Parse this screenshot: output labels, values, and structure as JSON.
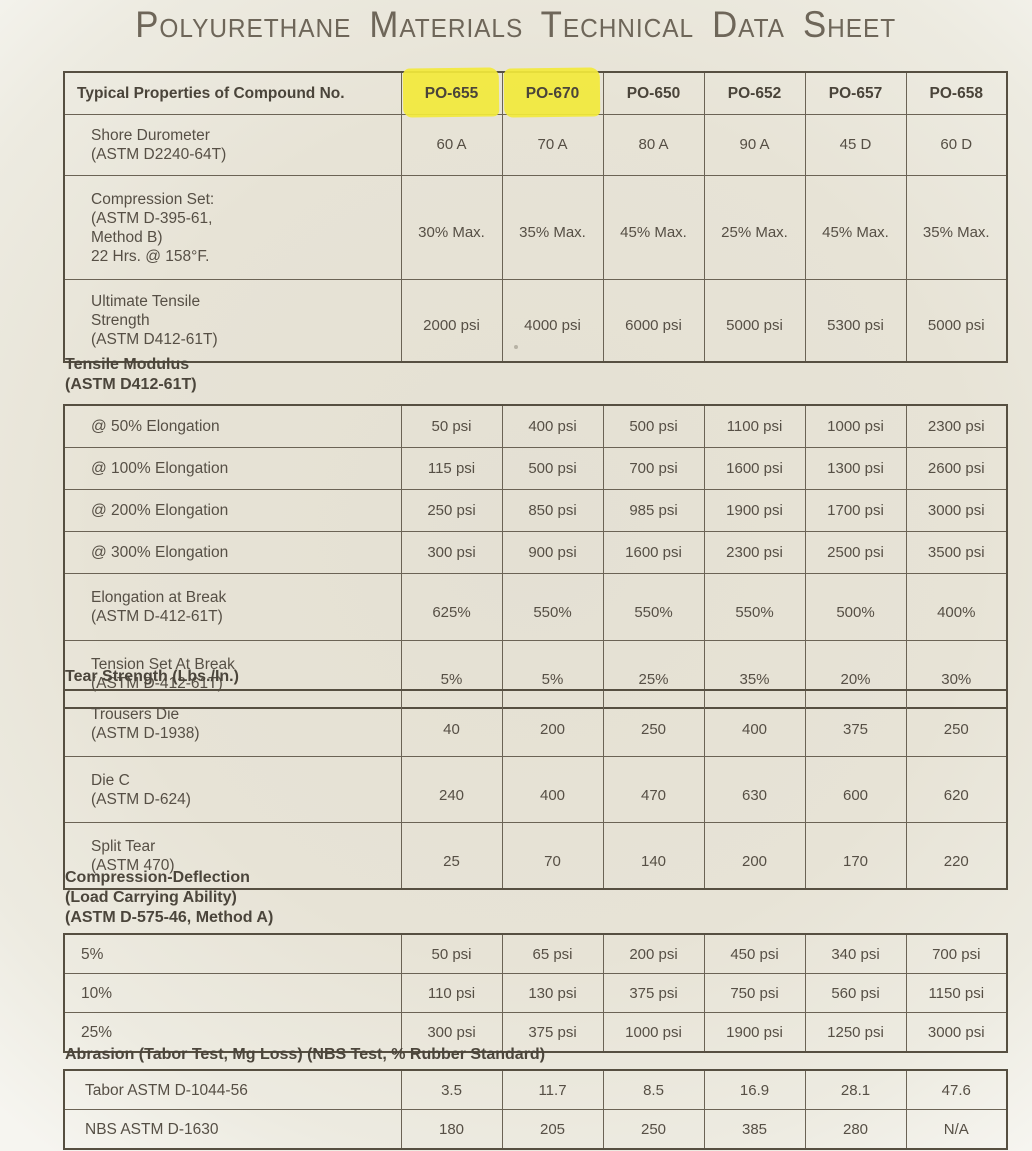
{
  "page_title": "Polyurethane Materials Technical Data Sheet",
  "colors": {
    "paper": "#e7e3d6",
    "ink": "#564f45",
    "table_border": "#6b6355",
    "highlight": "#f2e93b"
  },
  "columns": [
    "PO-655",
    "PO-670",
    "PO-650",
    "PO-652",
    "PO-657",
    "PO-658"
  ],
  "highlighted_columns": [
    0,
    1
  ],
  "main_table": {
    "header_label": "Typical Properties of Compound No.",
    "rows": [
      {
        "label_lines": [
          "Shore Durometer",
          "(ASTM D2240-64T)"
        ],
        "values": [
          "60 A",
          "70 A",
          "80 A",
          "90 A",
          "45 D",
          "60 D"
        ]
      },
      {
        "label_lines": [
          "Compression Set:",
          "(ASTM D-395-61,",
          "Method B)",
          "22 Hrs. @ 158°F."
        ],
        "values": [
          "30% Max.",
          "35% Max.",
          "45% Max.",
          "25% Max.",
          "45% Max.",
          "35% Max."
        ]
      },
      {
        "label_lines": [
          "Ultimate Tensile",
          "Strength",
          "(ASTM D412-61T)"
        ],
        "values": [
          "2000 psi",
          "4000 psi",
          "6000 psi",
          "5000 psi",
          "5300 psi",
          "5000 psi"
        ]
      }
    ]
  },
  "sections": [
    {
      "id": "tensile",
      "heading_lines": [
        "Tensile Modulus",
        "(ASTM D412-61T)"
      ],
      "rows": [
        {
          "label_lines": [
            "@ 50% Elongation"
          ],
          "values": [
            "50 psi",
            "400 psi",
            "500 psi",
            "1100 psi",
            "1000 psi",
            "2300 psi"
          ]
        },
        {
          "label_lines": [
            "@ 100% Elongation"
          ],
          "values": [
            "115 psi",
            "500 psi",
            "700 psi",
            "1600 psi",
            "1300 psi",
            "2600 psi"
          ]
        },
        {
          "label_lines": [
            "@ 200% Elongation"
          ],
          "values": [
            "250 psi",
            "850 psi",
            "985 psi",
            "1900 psi",
            "1700 psi",
            "3000 psi"
          ]
        },
        {
          "label_lines": [
            "@ 300% Elongation"
          ],
          "values": [
            "300 psi",
            "900 psi",
            "1600 psi",
            "2300 psi",
            "2500 psi",
            "3500 psi"
          ]
        },
        {
          "label_lines": [
            "Elongation at Break",
            "(ASTM D-412-61T)"
          ],
          "values": [
            "625%",
            "550%",
            "550%",
            "550%",
            "500%",
            "400%"
          ]
        },
        {
          "label_lines": [
            "Tension Set At Break",
            "(ASTM D-412-61T)"
          ],
          "values": [
            "5%",
            "5%",
            "25%",
            "35%",
            "20%",
            "30%"
          ]
        }
      ]
    },
    {
      "id": "tear",
      "heading_lines": [
        "Tear Strength (Lbs./In.)"
      ],
      "rows": [
        {
          "label_lines": [
            "Trousers Die",
            "(ASTM D-1938)"
          ],
          "values": [
            "40",
            "200",
            "250",
            "400",
            "375",
            "250"
          ]
        },
        {
          "label_lines": [
            "Die C",
            "(ASTM D-624)"
          ],
          "values": [
            "240",
            "400",
            "470",
            "630",
            "600",
            "620"
          ]
        },
        {
          "label_lines": [
            "Split Tear",
            "(ASTM 470)"
          ],
          "values": [
            "25",
            "70",
            "140",
            "200",
            "170",
            "220"
          ]
        }
      ]
    },
    {
      "id": "comp",
      "heading_lines": [
        "Compression-Deflection",
        "(Load Carrying Ability)",
        "(ASTM D-575-46, Method A)"
      ],
      "rows": [
        {
          "label_lines": [
            "5%"
          ],
          "values": [
            "50 psi",
            "65 psi",
            "200 psi",
            "450 psi",
            "340 psi",
            "700 psi"
          ]
        },
        {
          "label_lines": [
            "10%"
          ],
          "values": [
            "110 psi",
            "130 psi",
            "375 psi",
            "750 psi",
            "560 psi",
            "1150 psi"
          ]
        },
        {
          "label_lines": [
            "25%"
          ],
          "values": [
            "300 psi",
            "375 psi",
            "1000 psi",
            "1900 psi",
            "1250 psi",
            "3000 psi"
          ]
        }
      ]
    },
    {
      "id": "abr",
      "heading_lines": [
        "Abrasion (Tabor Test, Mg Loss) (NBS Test, % Rubber Standard)"
      ],
      "rows": [
        {
          "label_lines": [
            "Tabor ASTM D-1044-56"
          ],
          "values": [
            "3.5",
            "11.7",
            "8.5",
            "16.9",
            "28.1",
            "47.6"
          ]
        },
        {
          "label_lines": [
            "NBS ASTM D-1630"
          ],
          "values": [
            "180",
            "205",
            "250",
            "385",
            "280",
            "N/A"
          ]
        }
      ]
    }
  ]
}
